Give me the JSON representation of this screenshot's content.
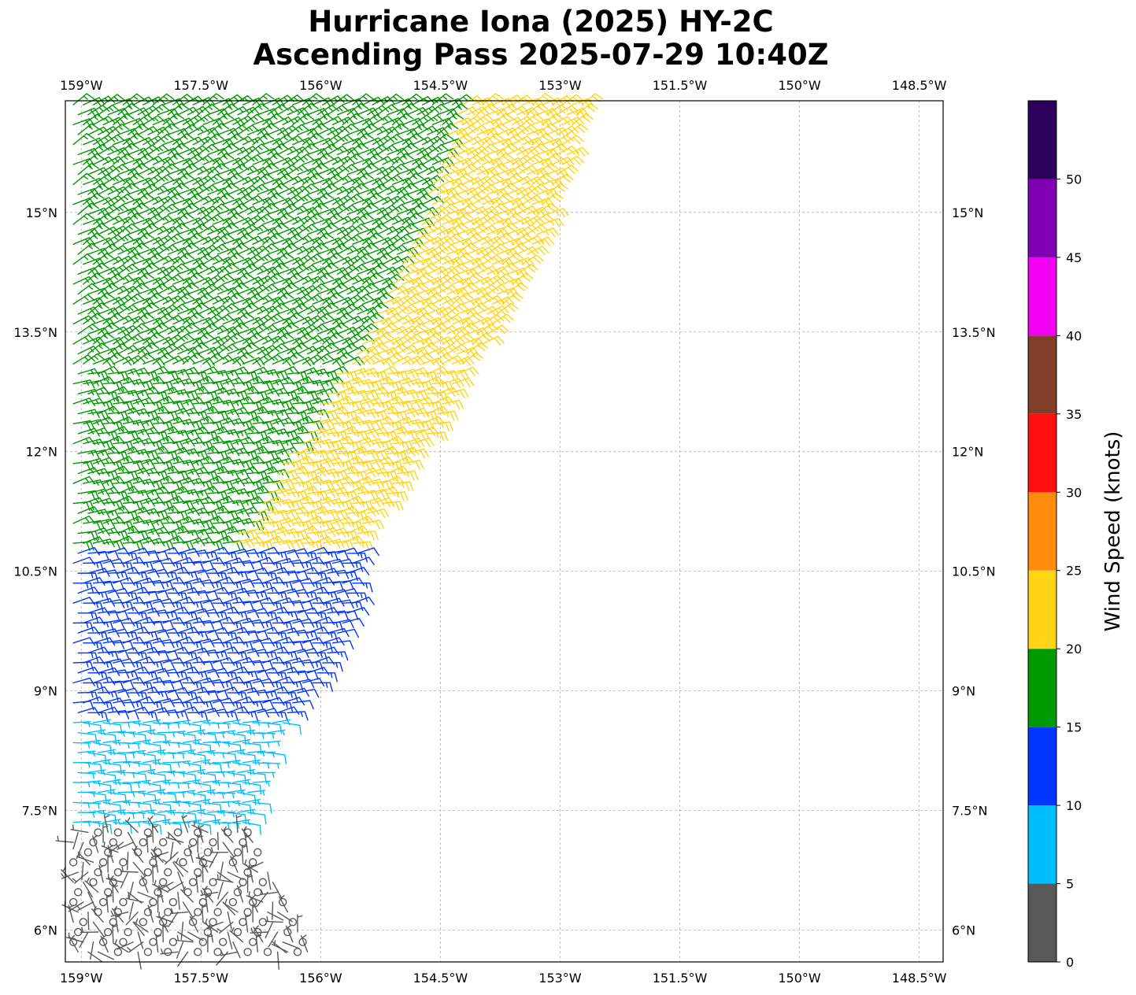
{
  "title_line1": "Hurricane Iona (2025) HY-2C",
  "title_line2": "Ascending Pass 2025-07-29 10:40Z",
  "colorbar": {
    "label": "Wind Speed (knots)",
    "bins": [
      {
        "min": 0,
        "max": 5,
        "color": "#595959"
      },
      {
        "min": 5,
        "max": 10,
        "color": "#00bfff"
      },
      {
        "min": 10,
        "max": 15,
        "color": "#0036ff"
      },
      {
        "min": 15,
        "max": 20,
        "color": "#009900"
      },
      {
        "min": 20,
        "max": 25,
        "color": "#ffd414"
      },
      {
        "min": 25,
        "max": 30,
        "color": "#ff8c0f"
      },
      {
        "min": 30,
        "max": 35,
        "color": "#ff0f0f"
      },
      {
        "min": 35,
        "max": 40,
        "color": "#7f3f28"
      },
      {
        "min": 40,
        "max": 45,
        "color": "#f200f2"
      },
      {
        "min": 45,
        "max": 50,
        "color": "#8000b3"
      },
      {
        "min": 50,
        "max": 55,
        "color": "#2e005e"
      }
    ],
    "tick_values": [
      0,
      5,
      10,
      15,
      20,
      25,
      30,
      35,
      40,
      45,
      50
    ],
    "tick_labels": [
      "0",
      "5",
      "10",
      "15",
      "20",
      "25",
      "30",
      "35",
      "40",
      "45",
      "50"
    ]
  },
  "map": {
    "lon_range": [
      -159.2,
      -148.2
    ],
    "lat_range": [
      5.6,
      16.4
    ],
    "lon_ticks": [
      -159,
      -157.5,
      -156,
      -154.5,
      -153,
      -151.5,
      -150,
      -148.5
    ],
    "lon_labels": [
      "159°W",
      "157.5°W",
      "156°W",
      "154.5°W",
      "153°W",
      "151.5°W",
      "150°W",
      "148.5°W"
    ],
    "lat_ticks": [
      6,
      7.5,
      9,
      10.5,
      12,
      13.5,
      15
    ],
    "lat_labels": [
      "6°N",
      "7.5°N",
      "9°N",
      "10.5°N",
      "12°N",
      "13.5°N",
      "15°N"
    ],
    "gridlines": true
  },
  "chart_data": {
    "type": "wind_barbs",
    "units": "knots",
    "swath_east_edge": [
      [
        5.6,
        -156.1
      ],
      [
        7.4,
        -156.9
      ],
      [
        8.4,
        -156.6
      ],
      [
        9.2,
        -156.0
      ],
      [
        10.0,
        -155.6
      ],
      [
        10.9,
        -155.5
      ],
      [
        12.0,
        -154.8
      ],
      [
        13.3,
        -154.0
      ],
      [
        14.8,
        -153.2
      ],
      [
        16.4,
        -152.7
      ]
    ],
    "wind_fields": [
      {
        "lat_min": 13.0,
        "lat_max": 16.4,
        "lon_west_to_cutoff": -155.9,
        "speed": 17,
        "speed_east": 22,
        "direction": 60
      },
      {
        "lat_min": 10.8,
        "lat_max": 13.0,
        "speed": 17,
        "speed_east": 22,
        "direction": 75
      },
      {
        "lat_min": 8.6,
        "lat_max": 10.8,
        "speed": 12,
        "direction": 80
      },
      {
        "lat_min": 7.3,
        "lat_max": 8.6,
        "speed": 7,
        "direction": 90
      },
      {
        "lat_min": 5.6,
        "lat_max": 7.3,
        "speed": 2,
        "direction": 200,
        "calm_points": true
      }
    ]
  }
}
